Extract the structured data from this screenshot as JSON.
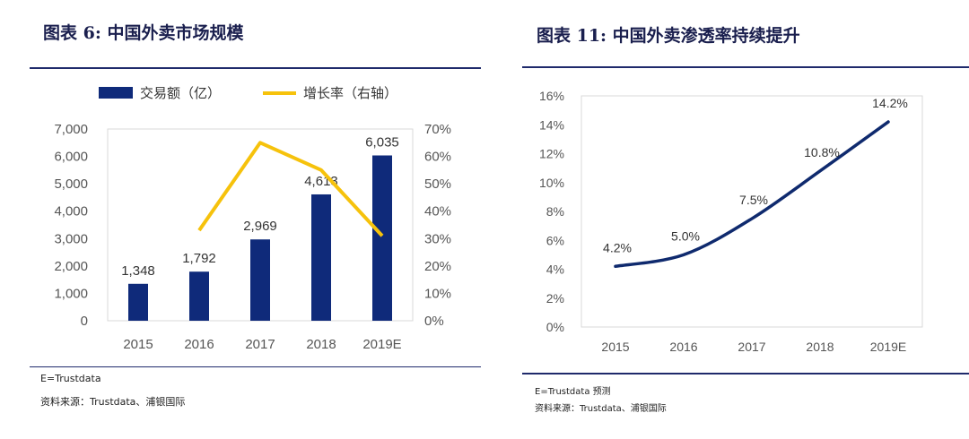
{
  "left": {
    "title": "图表 6: 中国外卖市场规模",
    "note": "E=Trustdata",
    "source": "资料来源：Trustdata、浦银国际"
  },
  "right": {
    "title": "图表 11: 中国外卖渗透率持续提升",
    "note": "E=Trustdata 预测",
    "source": "资料来源：Trustdata、浦银国际"
  },
  "colors": {
    "bar": "#0f2a7a",
    "growth": "#f6c20c",
    "line": "#0f2a6e",
    "frame": "#1f2a6b"
  },
  "chart_data": [
    {
      "type": "bar",
      "title": "中国外卖市场规模",
      "categories": [
        "2015",
        "2016",
        "2017",
        "2018",
        "2019E"
      ],
      "series": [
        {
          "name": "交易额（亿）",
          "axis": "left",
          "values": [
            1348,
            1792,
            2969,
            4613,
            6035
          ],
          "labels": [
            "1,348",
            "1,792",
            "2,969",
            "4,613",
            "6,035"
          ]
        },
        {
          "name": "增长率（右轴）",
          "type": "line",
          "axis": "right",
          "x": [
            "2016",
            "2017",
            "2018",
            "2019E"
          ],
          "values": [
            33,
            65,
            55,
            31
          ]
        }
      ],
      "ylim_left": [
        0,
        7000
      ],
      "ytick_left": [
        "0",
        "1,000",
        "2,000",
        "3,000",
        "4,000",
        "5,000",
        "6,000",
        "7,000"
      ],
      "ylim_right": [
        0,
        70
      ],
      "ytick_right": [
        "0%",
        "10%",
        "20%",
        "30%",
        "40%",
        "50%",
        "60%",
        "70%"
      ],
      "legend": "top"
    },
    {
      "type": "line",
      "title": "中国外卖渗透率持续提升",
      "categories": [
        "2015",
        "2016",
        "2017",
        "2018",
        "2019E"
      ],
      "series": [
        {
          "name": "渗透率",
          "values": [
            4.2,
            5.0,
            7.5,
            10.8,
            14.2
          ],
          "labels": [
            "4.2%",
            "5.0%",
            "7.5%",
            "10.8%",
            "14.2%"
          ]
        }
      ],
      "ylim": [
        0,
        16
      ],
      "yticks": [
        "0%",
        "2%",
        "4%",
        "6%",
        "8%",
        "10%",
        "12%",
        "14%",
        "16%"
      ]
    }
  ]
}
